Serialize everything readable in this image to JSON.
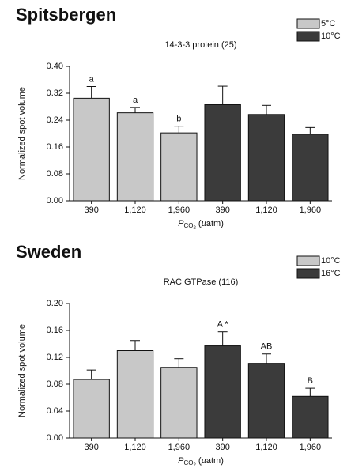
{
  "chart_data": [
    {
      "type": "bar",
      "title": "Spitsbergen",
      "subtitle": "14-3-3 protein (25)",
      "ylabel": "Normalized spot volume",
      "xlabel": [
        "P",
        "CO",
        "2",
        " (",
        "µ",
        "atm)"
      ],
      "categories": [
        "390",
        "1,120",
        "1,960"
      ],
      "ylim": [
        0,
        0.4
      ],
      "yticks": [
        {
          "value": 0,
          "label": "0.00"
        },
        {
          "value": 0.08,
          "label": "0.08"
        },
        {
          "value": 0.16,
          "label": "0.16"
        },
        {
          "value": 0.24,
          "label": "0.24"
        },
        {
          "value": 0.32,
          "label": "0.32"
        },
        {
          "value": 0.4,
          "label": "0.40"
        }
      ],
      "series": [
        {
          "name": "5°C",
          "color": "#c8c8c8",
          "values": [
            0.305,
            0.262,
            0.202
          ],
          "errors": [
            0.035,
            0.016,
            0.02
          ],
          "letters": [
            "a",
            "a",
            "b"
          ]
        },
        {
          "name": "10°C",
          "color": "#3b3b3b",
          "values": [
            0.286,
            0.257,
            0.198
          ],
          "errors": [
            0.055,
            0.027,
            0.02
          ]
        }
      ]
    },
    {
      "type": "bar",
      "title": "Sweden",
      "subtitle": "RAC GTPase (116)",
      "ylabel": "Normalized spot volume",
      "xlabel": [
        "P",
        "CO",
        "2",
        " (",
        "µ",
        "atm)"
      ],
      "categories": [
        "390",
        "1,120",
        "1,960"
      ],
      "ylim": [
        0,
        0.2
      ],
      "yticks": [
        {
          "value": 0,
          "label": "0.00"
        },
        {
          "value": 0.04,
          "label": "0.04"
        },
        {
          "value": 0.08,
          "label": "0.08"
        },
        {
          "value": 0.12,
          "label": "0.12"
        },
        {
          "value": 0.16,
          "label": "0.16"
        },
        {
          "value": 0.2,
          "label": "0.20"
        }
      ],
      "series": [
        {
          "name": "10°C",
          "color": "#c8c8c8",
          "values": [
            0.087,
            0.13,
            0.105
          ],
          "errors": [
            0.014,
            0.015,
            0.013
          ]
        },
        {
          "name": "16°C",
          "color": "#3b3b3b",
          "values": [
            0.137,
            0.111,
            0.062
          ],
          "errors": [
            0.021,
            0.014,
            0.012
          ],
          "letters": [
            "A *",
            "AB",
            "B"
          ]
        }
      ]
    }
  ]
}
